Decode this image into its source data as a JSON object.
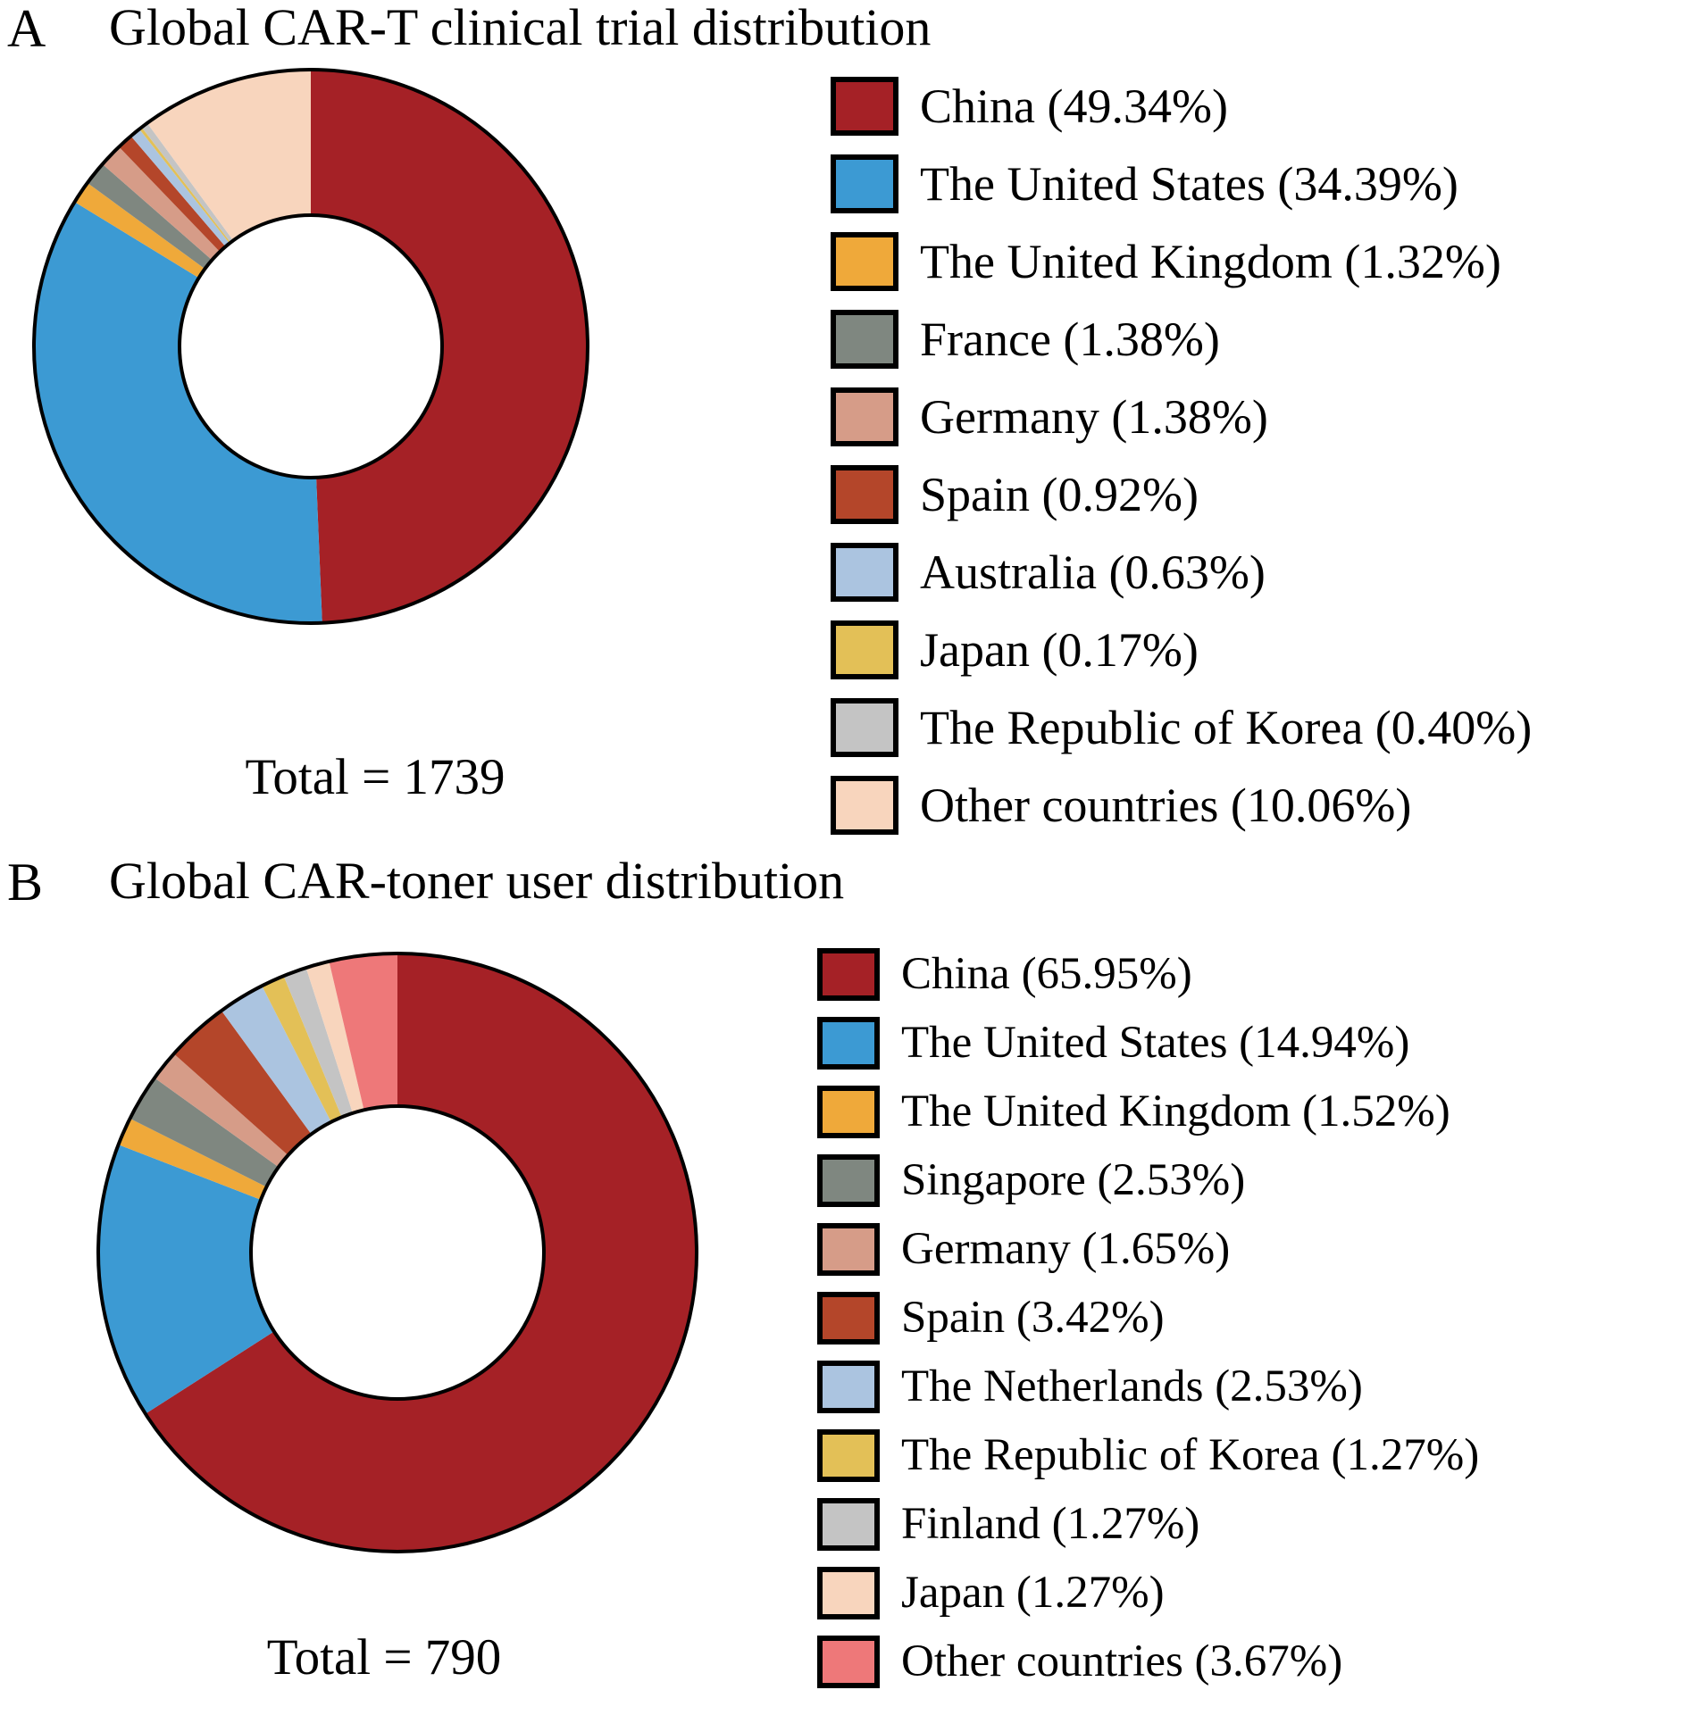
{
  "chart_data": [
    {
      "type": "pie",
      "subtype": "donut",
      "panel": "A",
      "title": "Global CAR-T clinical trial distribution",
      "total": 1739,
      "total_label": "Total = 1739",
      "legend_position": "right",
      "start_angle": "12 o'clock, clockwise",
      "labels": [
        "China",
        "The United States",
        "The United Kingdom",
        "France",
        "Germany",
        "Spain",
        "Australia",
        "Japan",
        "The Republic of Korea",
        "Other countries"
      ],
      "values": [
        49.34,
        34.39,
        1.32,
        1.38,
        1.38,
        0.92,
        0.63,
        0.17,
        0.4,
        10.06
      ],
      "legend": [
        "China (49.34%)",
        "The United States (34.39%)",
        "The United Kingdom (1.32%)",
        "France (1.38%)",
        "Germany (1.38%)",
        "Spain (0.92%)",
        "Australia (0.63%)",
        "Japan (0.17%)",
        "The Republic of Korea (0.40%)",
        "Other countries (10.06%)"
      ],
      "colors": [
        "#A52126",
        "#3C9AD3",
        "#EFA93A",
        "#7F8780",
        "#D69C88",
        "#B4462A",
        "#ABC4E0",
        "#E3C057",
        "#C4C4C4",
        "#F8D5BD"
      ],
      "outline_color": "#000000"
    },
    {
      "type": "pie",
      "subtype": "donut",
      "panel": "B",
      "title": "Global CAR-toner user distribution",
      "total": 790,
      "total_label": "Total = 790",
      "legend_position": "right",
      "start_angle": "12 o'clock, clockwise",
      "labels": [
        "China",
        "The United States",
        "The United Kingdom",
        "Singapore",
        "Germany",
        "Spain",
        "The Netherlands",
        "The Republic of Korea",
        "Finland",
        "Japan",
        "Other countries"
      ],
      "values": [
        65.95,
        14.94,
        1.52,
        2.53,
        1.65,
        3.42,
        2.53,
        1.27,
        1.27,
        1.27,
        3.67
      ],
      "legend": [
        "China (65.95%)",
        "The United States (14.94%)",
        "The United Kingdom (1.52%)",
        "Singapore (2.53%)",
        "Germany (1.65%)",
        "Spain (3.42%)",
        "The Netherlands (2.53%)",
        "The Republic of Korea (1.27%)",
        "Finland (1.27%)",
        "Japan (1.27%)",
        "Other countries (3.67%)"
      ],
      "colors": [
        "#A52126",
        "#3C9AD3",
        "#EFA93A",
        "#7F8780",
        "#D69C88",
        "#B4462A",
        "#ABC4E0",
        "#E3C057",
        "#C4C4C4",
        "#F8D5BD",
        "#EE7879"
      ],
      "outline_color": "#000000"
    }
  ]
}
